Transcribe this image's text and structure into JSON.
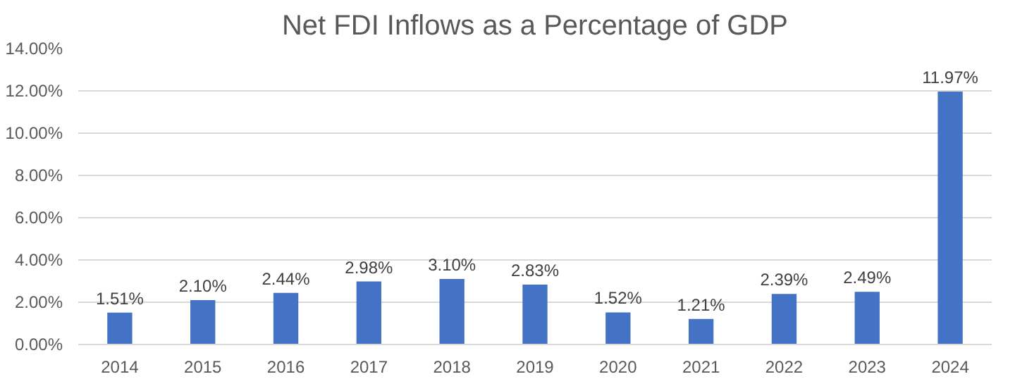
{
  "chart_data": {
    "type": "bar",
    "title": "Net FDI Inflows as a Percentage of GDP",
    "categories": [
      "2014",
      "2015",
      "2016",
      "2017",
      "2018",
      "2019",
      "2020",
      "2021",
      "2022",
      "2023",
      "2024"
    ],
    "values": [
      1.51,
      2.1,
      2.44,
      2.98,
      3.1,
      2.83,
      1.52,
      1.21,
      2.39,
      2.49,
      11.97
    ],
    "value_labels": [
      "1.51%",
      "2.10%",
      "2.44%",
      "2.98%",
      "3.10%",
      "2.83%",
      "1.52%",
      "1.21%",
      "2.39%",
      "2.49%",
      "11.97%"
    ],
    "color": "#4472c4",
    "ylim": [
      0,
      14
    ],
    "yticks": [
      {
        "value": 0,
        "label": "0.00%"
      },
      {
        "value": 2,
        "label": "2.00%"
      },
      {
        "value": 4,
        "label": "4.00%"
      },
      {
        "value": 6,
        "label": "6.00%"
      },
      {
        "value": 8,
        "label": "8.00%"
      },
      {
        "value": 10,
        "label": "10.00%"
      },
      {
        "value": 12,
        "label": "12.00%"
      },
      {
        "value": 14,
        "label": "14.00%"
      }
    ],
    "grid": "y"
  }
}
